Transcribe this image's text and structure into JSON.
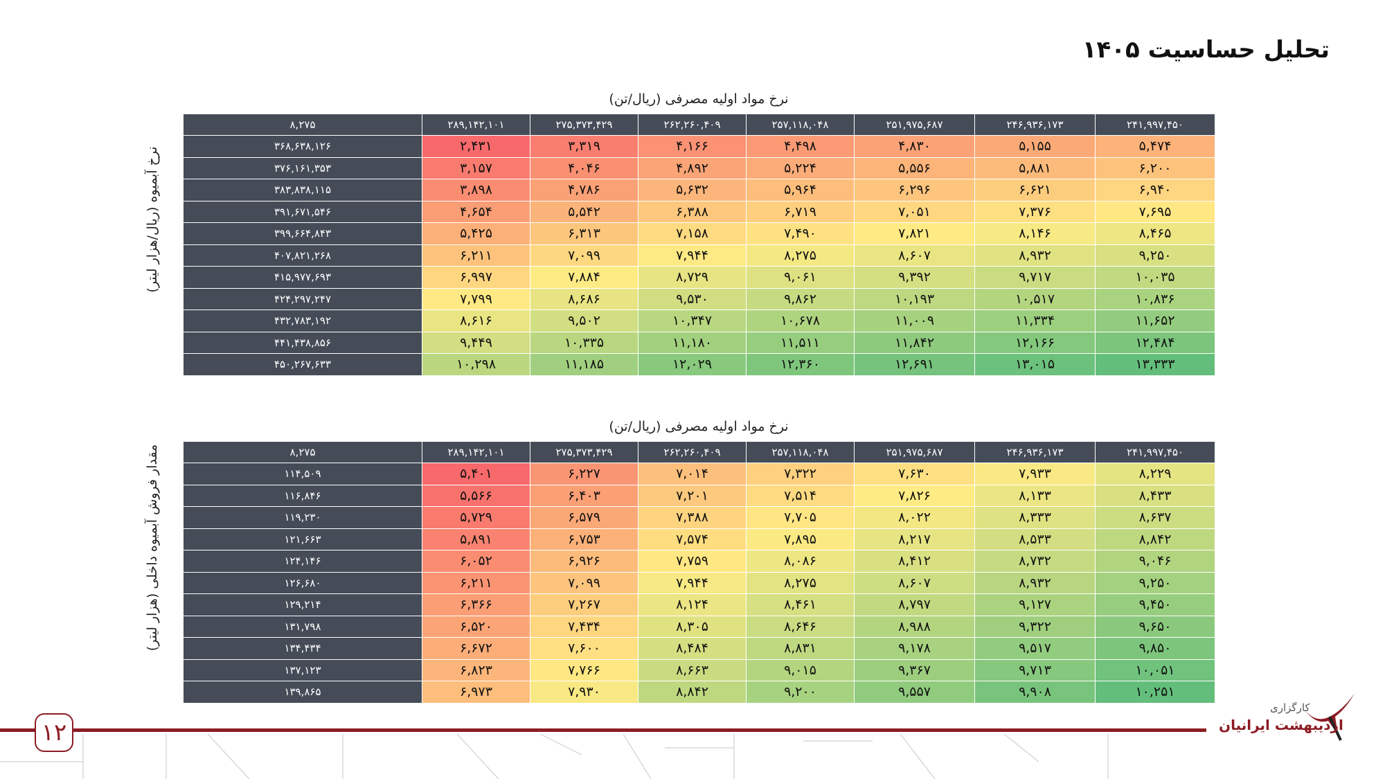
{
  "title": "تحلیل حساسیت ۱۴۰۵",
  "page_number": "۱۲",
  "logo": {
    "line1": "کارگزاری",
    "line2": "اردیبهشت ایرانیان"
  },
  "colors": {
    "header_dark": "#454c58",
    "low": "#f8696b",
    "mid": "#ffeb84",
    "high": "#63be7b",
    "brand_red": "#8c1c24"
  },
  "table1": {
    "col_caption": "نرخ مواد اولیه مصرفی (ریال/تن)",
    "row_caption": "نرخ آبمیوه (ریال/هزار لیتر)",
    "corner": "۸,۲۷۵",
    "columns": [
      "۲۸۹,۱۴۲,۱۰۱",
      "۲۷۵,۳۷۳,۴۲۹",
      "۲۶۲,۲۶۰,۴۰۹",
      "۲۵۷,۱۱۸,۰۴۸",
      "۲۵۱,۹۷۵,۶۸۷",
      "۲۴۶,۹۳۶,۱۷۳",
      "۲۴۱,۹۹۷,۴۵۰"
    ],
    "rows": [
      {
        "label": "۳۶۸,۶۳۸,۱۲۶",
        "values": [
          2431,
          3319,
          4166,
          4498,
          4830,
          5155,
          5474
        ]
      },
      {
        "label": "۳۷۶,۱۶۱,۳۵۳",
        "values": [
          3157,
          4046,
          4892,
          5224,
          5556,
          5881,
          6200
        ]
      },
      {
        "label": "۳۸۳,۸۳۸,۱۱۵",
        "values": [
          3898,
          4786,
          5632,
          5964,
          6296,
          6621,
          6940
        ]
      },
      {
        "label": "۳۹۱,۶۷۱,۵۴۶",
        "values": [
          4654,
          5542,
          6388,
          6719,
          7051,
          7376,
          7695
        ]
      },
      {
        "label": "۳۹۹,۶۶۴,۸۴۳",
        "values": [
          5425,
          6313,
          7158,
          7490,
          7821,
          8146,
          8465
        ]
      },
      {
        "label": "۴۰۷,۸۲۱,۲۶۸",
        "values": [
          6211,
          7099,
          7944,
          8275,
          8607,
          8932,
          9250
        ]
      },
      {
        "label": "۴۱۵,۹۷۷,۶۹۳",
        "values": [
          6997,
          7884,
          8729,
          9061,
          9392,
          9717,
          10035
        ]
      },
      {
        "label": "۴۲۴,۲۹۷,۲۴۷",
        "values": [
          7799,
          8686,
          9530,
          9862,
          10193,
          10517,
          10836
        ]
      },
      {
        "label": "۴۳۲,۷۸۳,۱۹۲",
        "values": [
          8616,
          9502,
          10347,
          10678,
          11009,
          11334,
          11652
        ]
      },
      {
        "label": "۴۴۱,۴۳۸,۸۵۶",
        "values": [
          9449,
          10335,
          11180,
          11511,
          11842,
          12166,
          12484
        ]
      },
      {
        "label": "۴۵۰,۲۶۷,۶۳۳",
        "values": [
          10298,
          11185,
          12029,
          12360,
          12691,
          13015,
          13333
        ]
      }
    ]
  },
  "table2": {
    "col_caption": "نرخ مواد اولیه مصرفی (ریال/تن)",
    "row_caption": "مقدار فروش آبمیوه داخلی (هزار لیتر)",
    "corner": "۸,۲۷۵",
    "columns": [
      "۲۸۹,۱۴۲,۱۰۱",
      "۲۷۵,۳۷۳,۴۲۹",
      "۲۶۲,۲۶۰,۴۰۹",
      "۲۵۷,۱۱۸,۰۴۸",
      "۲۵۱,۹۷۵,۶۸۷",
      "۲۴۶,۹۳۶,۱۷۳",
      "۲۴۱,۹۹۷,۴۵۰"
    ],
    "rows": [
      {
        "label": "۱۱۴,۵۰۹",
        "values": [
          5401,
          6227,
          7014,
          7322,
          7630,
          7933,
          8229
        ]
      },
      {
        "label": "۱۱۶,۸۴۶",
        "values": [
          5566,
          6403,
          7201,
          7514,
          7826,
          8133,
          8433
        ]
      },
      {
        "label": "۱۱۹,۲۳۰",
        "values": [
          5729,
          6579,
          7388,
          7705,
          8022,
          8333,
          8637
        ]
      },
      {
        "label": "۱۲۱,۶۶۳",
        "values": [
          5891,
          6753,
          7574,
          7895,
          8217,
          8533,
          8842
        ]
      },
      {
        "label": "۱۲۴,۱۴۶",
        "values": [
          6052,
          6926,
          7759,
          8086,
          8412,
          8732,
          9046
        ]
      },
      {
        "label": "۱۲۶,۶۸۰",
        "values": [
          6211,
          7099,
          7944,
          8275,
          8607,
          8932,
          9250
        ]
      },
      {
        "label": "۱۲۹,۲۱۴",
        "values": [
          6366,
          7267,
          8124,
          8461,
          8797,
          9127,
          9450
        ]
      },
      {
        "label": "۱۳۱,۷۹۸",
        "values": [
          6520,
          7434,
          8305,
          8646,
          8988,
          9322,
          9650
        ]
      },
      {
        "label": "۱۳۴,۴۳۴",
        "values": [
          6672,
          7600,
          8484,
          8831,
          9178,
          9517,
          9850
        ]
      },
      {
        "label": "۱۳۷,۱۲۳",
        "values": [
          6823,
          7766,
          8663,
          9015,
          9367,
          9713,
          10051
        ]
      },
      {
        "label": "۱۳۹,۸۶۵",
        "values": [
          6973,
          7930,
          8842,
          9200,
          9557,
          9908,
          10251
        ]
      }
    ]
  }
}
